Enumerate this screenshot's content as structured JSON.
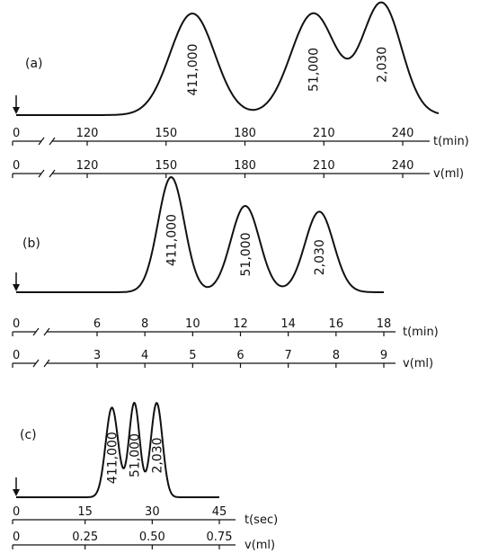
{
  "chart_data": [
    {
      "type": "line",
      "panel_label": "(a)",
      "x_axis_primary": {
        "unit": "t(min)",
        "ticks": [
          {
            "value": 0,
            "label": "0"
          },
          {
            "value": 120,
            "label": "120"
          },
          {
            "value": 150,
            "label": "150"
          },
          {
            "value": 180,
            "label": "180"
          },
          {
            "value": 210,
            "label": "210"
          },
          {
            "value": 240,
            "label": "240"
          }
        ],
        "range": [
          0,
          250
        ],
        "broken_between": [
          0,
          120
        ]
      },
      "x_axis_secondary": {
        "unit": "v(ml)",
        "ticks": [
          {
            "value": 0,
            "label": "0"
          },
          {
            "value": 120,
            "label": "120"
          },
          {
            "value": 150,
            "label": "150"
          },
          {
            "value": 180,
            "label": "180"
          },
          {
            "value": 210,
            "label": "210"
          },
          {
            "value": 240,
            "label": "240"
          }
        ]
      },
      "peaks": [
        {
          "x": 160,
          "height": 1.0,
          "label": "411,000"
        },
        {
          "x": 206,
          "height": 1.0,
          "label": "51,000"
        },
        {
          "x": 232,
          "height": 1.1,
          "label": "2,030"
        }
      ],
      "y_axis_visible": false
    },
    {
      "type": "line",
      "panel_label": "(b)",
      "x_axis_primary": {
        "unit": "t(min)",
        "ticks": [
          {
            "value": 0,
            "label": "0"
          },
          {
            "value": 6,
            "label": "6"
          },
          {
            "value": 8,
            "label": "8"
          },
          {
            "value": 10,
            "label": "10"
          },
          {
            "value": 12,
            "label": "12"
          },
          {
            "value": 14,
            "label": "14"
          },
          {
            "value": 16,
            "label": "16"
          },
          {
            "value": 18,
            "label": "18"
          }
        ],
        "range": [
          0,
          18
        ],
        "broken_between": [
          0,
          6
        ]
      },
      "x_axis_secondary": {
        "unit": "v(ml)",
        "ticks": [
          {
            "value": 0,
            "label": "0"
          },
          {
            "value": 3,
            "label": "3"
          },
          {
            "value": 4,
            "label": "4"
          },
          {
            "value": 5,
            "label": "5"
          },
          {
            "value": 6,
            "label": "6"
          },
          {
            "value": 7,
            "label": "7"
          },
          {
            "value": 8,
            "label": "8"
          },
          {
            "value": 9,
            "label": "9"
          }
        ]
      },
      "peaks": [
        {
          "x": 9.1,
          "height": 1.0,
          "label": "411,000"
        },
        {
          "x": 12.2,
          "height": 0.75,
          "label": "51,000"
        },
        {
          "x": 15.3,
          "height": 0.7,
          "label": "2,030"
        }
      ],
      "y_axis_visible": false
    },
    {
      "type": "line",
      "panel_label": "(c)",
      "x_axis_primary": {
        "unit": "t(sec)",
        "ticks": [
          {
            "value": 0,
            "label": "0"
          },
          {
            "value": 15,
            "label": "15"
          },
          {
            "value": 30,
            "label": "30"
          },
          {
            "value": 45,
            "label": "45"
          }
        ],
        "range": [
          0,
          47
        ]
      },
      "x_axis_secondary": {
        "unit": "v(ml)",
        "ticks": [
          {
            "value": 0,
            "label": "0"
          },
          {
            "value": 0.25,
            "label": "0.25"
          },
          {
            "value": 0.5,
            "label": "0.50"
          },
          {
            "value": 0.75,
            "label": "0.75"
          }
        ]
      },
      "peaks": [
        {
          "x": 21,
          "height": 0.95,
          "label": "411,000"
        },
        {
          "x": 26,
          "height": 1.0,
          "label": "51,000"
        },
        {
          "x": 31,
          "height": 1.0,
          "label": "2,030"
        }
      ],
      "y_axis_visible": false
    }
  ]
}
